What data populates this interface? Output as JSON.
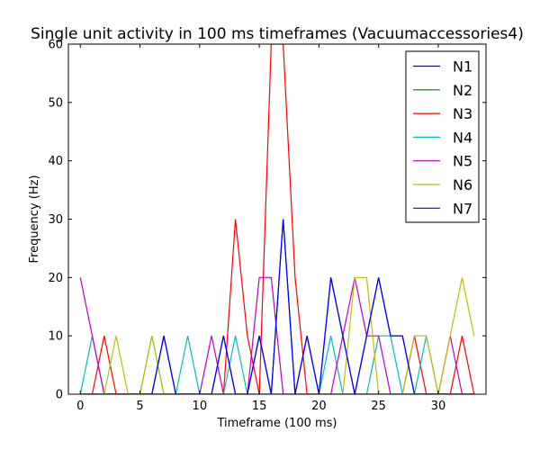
{
  "chart_data": {
    "type": "line",
    "title": "Single unit activity in 100 ms timeframes (Vacuumaccessories4)",
    "xlabel": "Timeframe (100 ms)",
    "ylabel": "Frequency (Hz)",
    "xlim": [
      -1,
      34
    ],
    "ylim": [
      0,
      60
    ],
    "xticks": [
      0,
      5,
      10,
      15,
      20,
      25,
      30
    ],
    "yticks": [
      0,
      10,
      20,
      30,
      40,
      50,
      60
    ],
    "grid": false,
    "legend_position": "top-right",
    "x": [
      0,
      1,
      2,
      3,
      4,
      5,
      6,
      7,
      8,
      9,
      10,
      11,
      12,
      13,
      14,
      15,
      16,
      17,
      18,
      19,
      20,
      21,
      22,
      23,
      24,
      25,
      26,
      27,
      28,
      29,
      30,
      31,
      32,
      33
    ],
    "series": [
      {
        "name": "N1",
        "color": "#0000ff",
        "values": [
          0,
          0,
          0,
          0,
          0,
          0,
          0,
          10,
          0,
          0,
          0,
          0,
          10,
          0,
          0,
          10,
          0,
          30,
          0,
          10,
          0,
          20,
          10,
          0,
          10,
          20,
          10,
          10,
          0,
          0,
          0,
          0,
          0,
          0
        ]
      },
      {
        "name": "N2",
        "color": "#008000",
        "values": [
          0,
          0,
          0,
          0,
          0,
          0,
          0,
          0,
          0,
          0,
          0,
          0,
          0,
          0,
          0,
          0,
          0,
          0,
          0,
          0,
          0,
          0,
          0,
          0,
          0,
          0,
          0,
          0,
          0,
          0,
          0,
          0,
          0,
          0
        ]
      },
      {
        "name": "N3",
        "color": "#ff0000",
        "values": [
          0,
          0,
          10,
          0,
          0,
          0,
          0,
          0,
          0,
          0,
          0,
          0,
          0,
          30,
          10,
          0,
          60,
          60,
          20,
          0,
          0,
          0,
          0,
          0,
          0,
          0,
          0,
          0,
          10,
          0,
          0,
          0,
          10,
          0
        ]
      },
      {
        "name": "N4",
        "color": "#00bfbf",
        "values": [
          0,
          10,
          0,
          0,
          0,
          0,
          10,
          0,
          0,
          10,
          0,
          0,
          0,
          10,
          0,
          0,
          0,
          0,
          0,
          0,
          0,
          10,
          0,
          0,
          0,
          10,
          10,
          0,
          0,
          10,
          0,
          0,
          0,
          0
        ]
      },
      {
        "name": "N5",
        "color": "#bf00bf",
        "values": [
          20,
          10,
          0,
          0,
          0,
          0,
          0,
          0,
          0,
          0,
          0,
          10,
          0,
          0,
          0,
          20,
          20,
          0,
          0,
          0,
          0,
          0,
          10,
          20,
          10,
          10,
          0,
          0,
          0,
          0,
          0,
          10,
          0,
          0
        ]
      },
      {
        "name": "N6",
        "color": "#bfbf00",
        "values": [
          0,
          0,
          0,
          10,
          0,
          0,
          10,
          0,
          0,
          0,
          0,
          0,
          0,
          0,
          0,
          0,
          0,
          0,
          0,
          0,
          0,
          0,
          0,
          20,
          20,
          0,
          0,
          0,
          10,
          10,
          0,
          10,
          20,
          10
        ]
      },
      {
        "name": "N7",
        "color": "#0000ff",
        "values": [
          0,
          0,
          0,
          0,
          0,
          0,
          0,
          10,
          0,
          0,
          0,
          0,
          10,
          0,
          0,
          10,
          0,
          30,
          0,
          10,
          0,
          20,
          10,
          0,
          10,
          20,
          10,
          10,
          0,
          0,
          0,
          0,
          0,
          0
        ]
      }
    ]
  }
}
